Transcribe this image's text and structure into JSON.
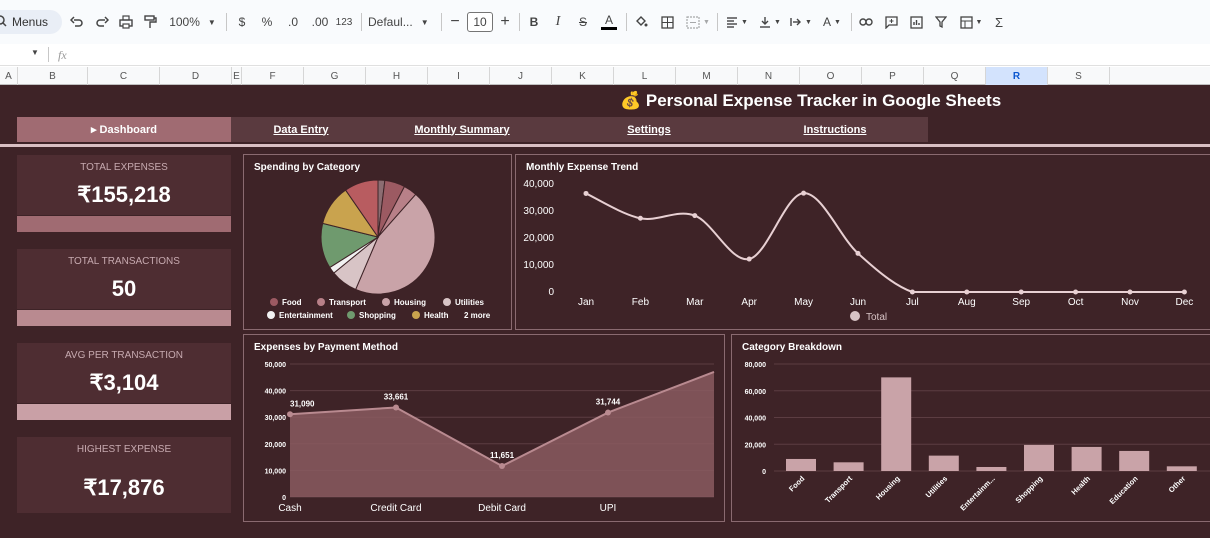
{
  "toolbar": {
    "menus_label": "Menus",
    "zoom": "100%",
    "currency": "$",
    "percent": "%",
    "dec_decrease": ".0",
    "dec_increase": ".00",
    "number_format": "123",
    "font": "Defaul...",
    "font_size": "10",
    "bold": "B",
    "italic": "I",
    "strike": "S",
    "text_color": "A",
    "functions": "Σ"
  },
  "formula_bar": {
    "fx": "fx"
  },
  "columns": [
    "A",
    "B",
    "C",
    "D",
    "E",
    "F",
    "G",
    "H",
    "I",
    "J",
    "K",
    "L",
    "M",
    "N",
    "O",
    "P",
    "Q",
    "R",
    "S"
  ],
  "selected_column": "R",
  "dashboard": {
    "title": "💰 Personal Expense Tracker in Google Sheets",
    "tabs": [
      {
        "label": "▸ Dashboard"
      },
      {
        "label": "Data Entry"
      },
      {
        "label": "Monthly Summary"
      },
      {
        "label": "Settings"
      },
      {
        "label": "Instructions"
      }
    ],
    "kpis": [
      {
        "label": "TOTAL EXPENSES",
        "value": "₹155,218"
      },
      {
        "label": "TOTAL TRANSACTIONS",
        "value": "50"
      },
      {
        "label": "AVG PER TRANSACTION",
        "value": "₹3,104"
      },
      {
        "label": "HIGHEST EXPENSE",
        "value": "₹17,876"
      }
    ],
    "colors": {
      "background": "#3e2327",
      "panel": "#4e2d32",
      "accent": "#a06b72",
      "accent_light": "#c9a0a6"
    }
  },
  "chart_data": [
    {
      "type": "pie",
      "title": "Spending by Category",
      "categories": [
        "Food",
        "Transport",
        "Housing",
        "Utilities",
        "Entertainment",
        "Shopping",
        "Health",
        "Education",
        "Other"
      ],
      "values": [
        9,
        6,
        70,
        12,
        3,
        20,
        18,
        15,
        3
      ],
      "colors": [
        "#9c5a62",
        "#b88088",
        "#c9a3a8",
        "#d8c4c6",
        "#f2f2f2",
        "#6f9a6e",
        "#c9a34e",
        "#b85c60",
        "#8c6d72"
      ],
      "legend": [
        "Food",
        "Transport",
        "Housing",
        "Utilities",
        "Entertainment",
        "Shopping",
        "Health",
        "2 more"
      ],
      "legend_placement": "bottom"
    },
    {
      "type": "line",
      "title": "Monthly Expense Trend",
      "categories": [
        "Jan",
        "Feb",
        "Mar",
        "Apr",
        "May",
        "Jun",
        "Jul",
        "Aug",
        "Sep",
        "Oct",
        "Nov",
        "Dec"
      ],
      "series": [
        {
          "name": "Total",
          "values": [
            36500,
            27300,
            28300,
            12200,
            36600,
            14300,
            0,
            0,
            0,
            0,
            0,
            0
          ]
        }
      ],
      "ylim": [
        0,
        40000
      ],
      "yticks": [
        "40,000",
        "30,000",
        "20,000",
        "10,000",
        "0"
      ],
      "legend_placement": "bottom",
      "grid": false
    },
    {
      "type": "area",
      "title": "Expenses by Payment Method",
      "categories": [
        "Cash",
        "Credit Card",
        "Debit Card",
        "UPI"
      ],
      "values": [
        31090,
        33661,
        11651,
        31744
      ],
      "data_labels": [
        "31,090",
        "33,661",
        "11,651",
        "31,744"
      ],
      "trailing_value": 47000,
      "ylim": [
        0,
        50000
      ],
      "yticks": [
        "50,000",
        "40,000",
        "30,000",
        "20,000",
        "10,000",
        "0"
      ],
      "grid": true
    },
    {
      "type": "bar",
      "title": "Category Breakdown",
      "categories": [
        "Food",
        "Transport",
        "Housing",
        "Utilities",
        "Entertainm...",
        "Shopping",
        "Health",
        "Education",
        "Other"
      ],
      "values": [
        9000,
        6500,
        70000,
        11500,
        3000,
        19500,
        18000,
        15000,
        3500
      ],
      "ylim": [
        0,
        80000
      ],
      "yticks": [
        "80,000",
        "60,000",
        "40,000",
        "20,000",
        "0"
      ],
      "grid": true
    }
  ]
}
